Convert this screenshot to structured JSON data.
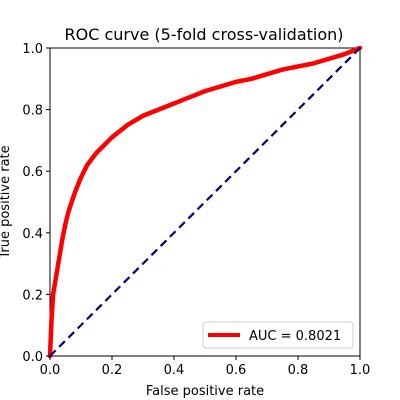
{
  "chart_data": {
    "type": "line",
    "title": "ROC curve (5-fold cross-validation)",
    "xlabel": "False positive rate",
    "ylabel": "True positive rate",
    "xlim": [
      0.0,
      1.0
    ],
    "ylim": [
      0.0,
      1.0
    ],
    "xticks": [
      "0.0",
      "0.2",
      "0.4",
      "0.6",
      "0.8",
      "1.0"
    ],
    "yticks": [
      "0.0",
      "0.2",
      "0.4",
      "0.6",
      "0.8",
      "1.0"
    ],
    "grid": false,
    "legend_position": "lower-right",
    "series": [
      {
        "name": "AUC = 0.8021",
        "color": "#ff0000",
        "style": "solid",
        "x": [
          0.0,
          0.005,
          0.01,
          0.02,
          0.03,
          0.04,
          0.05,
          0.06,
          0.08,
          0.1,
          0.12,
          0.15,
          0.18,
          0.2,
          0.25,
          0.3,
          0.35,
          0.4,
          0.45,
          0.5,
          0.55,
          0.6,
          0.65,
          0.7,
          0.75,
          0.8,
          0.85,
          0.9,
          0.95,
          1.0
        ],
        "y": [
          0.0,
          0.12,
          0.2,
          0.26,
          0.32,
          0.38,
          0.43,
          0.47,
          0.53,
          0.58,
          0.62,
          0.66,
          0.69,
          0.71,
          0.75,
          0.78,
          0.8,
          0.82,
          0.84,
          0.86,
          0.875,
          0.89,
          0.9,
          0.915,
          0.93,
          0.94,
          0.95,
          0.965,
          0.98,
          1.0
        ]
      },
      {
        "name": "",
        "color": "#000080",
        "style": "dashed",
        "x": [
          0.0,
          1.0
        ],
        "y": [
          0.0,
          1.0
        ]
      }
    ]
  }
}
